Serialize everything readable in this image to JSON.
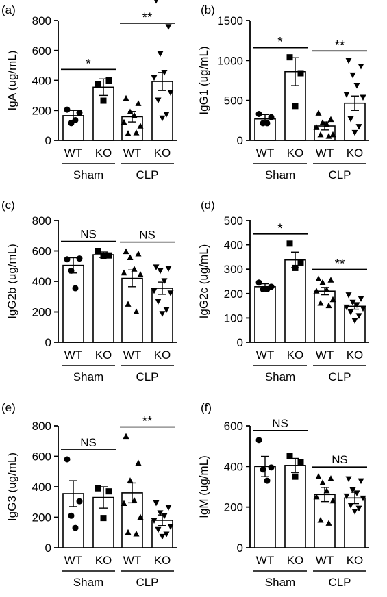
{
  "panel_letters": [
    "(a)",
    "(b)",
    "(c)",
    "(d)",
    "(e)",
    "(f)"
  ],
  "chart_data": [
    {
      "panel": "(a)",
      "type": "bar",
      "ylabel": "IgA (ug/mL)",
      "ylim": [
        0,
        800
      ],
      "yticks": [
        0,
        200,
        400,
        600,
        800
      ],
      "categories": [
        "WT",
        "KO",
        "WT",
        "KO"
      ],
      "groups": [
        "Sham",
        "CLP"
      ],
      "values": [
        165,
        355,
        158,
        393
      ],
      "errors": [
        35,
        55,
        35,
        60
      ],
      "points": [
        [
          205,
          185,
          115,
          135
        ],
        [
          375,
          400,
          265
        ],
        [
          280,
          245,
          190,
          165,
          120,
          95,
          45,
          50
        ],
        [
          935,
          760,
          580,
          455,
          420,
          320,
          270,
          175,
          150
        ]
      ],
      "markers": [
        "circle",
        "square",
        "triangle",
        "triangle-down"
      ],
      "comparisons": [
        {
          "pair": [
            0,
            1
          ],
          "label": "*"
        },
        {
          "pair": [
            2,
            3
          ],
          "label": "**"
        }
      ]
    },
    {
      "panel": "(b)",
      "type": "bar",
      "ylabel": "IgG1 (ug/mL)",
      "ylim": [
        0,
        1500
      ],
      "yticks": [
        0,
        500,
        1000,
        1500
      ],
      "categories": [
        "WT",
        "KO",
        "WT",
        "KO"
      ],
      "groups": [
        "Sham",
        "CLP"
      ],
      "values": [
        268,
        860,
        180,
        465
      ],
      "errors": [
        55,
        175,
        50,
        90
      ],
      "points": [
        [
          330,
          290,
          215,
          215
        ],
        [
          1040,
          840,
          430
        ],
        [
          340,
          260,
          220,
          200,
          160,
          70,
          70,
          50
        ],
        [
          1000,
          930,
          820,
          690,
          575,
          540,
          270,
          175,
          100
        ]
      ],
      "markers": [
        "circle",
        "square",
        "triangle",
        "triangle-down"
      ],
      "comparisons": [
        {
          "pair": [
            0,
            1
          ],
          "label": "*"
        },
        {
          "pair": [
            2,
            3
          ],
          "label": "**"
        }
      ]
    },
    {
      "panel": "(c)",
      "type": "bar",
      "ylabel": "IgG2b (ug/mL)",
      "ylim": [
        0,
        800
      ],
      "yticks": [
        0,
        200,
        400,
        600,
        800
      ],
      "categories": [
        "WT",
        "KO",
        "WT",
        "KO"
      ],
      "groups": [
        "Sham",
        "CLP"
      ],
      "values": [
        505,
        575,
        420,
        355
      ],
      "errors": [
        50,
        18,
        55,
        40
      ],
      "points": [
        [
          545,
          550,
          470,
          355
        ],
        [
          600,
          570,
          565
        ],
        [
          595,
          580,
          555,
          480,
          455,
          445,
          250,
          200
        ],
        [
          495,
          485,
          470,
          405,
          340,
          325,
          270,
          215,
          190
        ]
      ],
      "markers": [
        "circle",
        "square",
        "triangle",
        "triangle-down"
      ],
      "comparisons": [
        {
          "pair": [
            0,
            1
          ],
          "label": "NS"
        },
        {
          "pair": [
            2,
            3
          ],
          "label": "NS"
        }
      ]
    },
    {
      "panel": "(d)",
      "type": "bar",
      "ylabel": "IgG2c (ug/mL)",
      "ylim": [
        0,
        500
      ],
      "yticks": [
        0,
        100,
        200,
        300,
        400,
        500
      ],
      "categories": [
        "WT",
        "KO",
        "WT",
        "KO"
      ],
      "groups": [
        "Sham",
        "CLP"
      ],
      "values": [
        228,
        338,
        210,
        148
      ],
      "errors": [
        12,
        32,
        15,
        12
      ],
      "points": [
        [
          245,
          228,
          218,
          218
        ],
        [
          405,
          325,
          305
        ],
        [
          260,
          255,
          245,
          215,
          210,
          175,
          160,
          150
        ],
        [
          195,
          180,
          165,
          155,
          145,
          140,
          125,
          110,
          90
        ]
      ],
      "markers": [
        "circle",
        "square",
        "triangle",
        "triangle-down"
      ],
      "comparisons": [
        {
          "pair": [
            0,
            1
          ],
          "label": "*"
        },
        {
          "pair": [
            2,
            3
          ],
          "label": "**"
        }
      ]
    },
    {
      "panel": "(e)",
      "type": "bar",
      "ylabel": "IgG3 (ug/mL)",
      "ylim": [
        0,
        800
      ],
      "yticks": [
        0,
        200,
        400,
        600,
        800
      ],
      "categories": [
        "WT",
        "KO",
        "WT",
        "KO"
      ],
      "groups": [
        "Sham",
        "CLP"
      ],
      "values": [
        355,
        330,
        360,
        180
      ],
      "errors": [
        85,
        70,
        65,
        35
      ],
      "points": [
        [
          580,
          305,
          210,
          130
        ],
        [
          390,
          370,
          195
        ],
        [
          730,
          555,
          440,
          310,
          290,
          200,
          100,
          90
        ],
        [
          295,
          265,
          230,
          210,
          180,
          140,
          120,
          90,
          75
        ]
      ],
      "markers": [
        "circle",
        "square",
        "triangle",
        "triangle-down"
      ],
      "comparisons": [
        {
          "pair": [
            2,
            3
          ],
          "label": "**"
        },
        {
          "pair": [
            0,
            1
          ],
          "label": "NS"
        }
      ]
    },
    {
      "panel": "(f)",
      "type": "bar",
      "ylabel": "IgM (ug/mL)",
      "ylim": [
        0,
        600
      ],
      "yticks": [
        0,
        200,
        400,
        600
      ],
      "categories": [
        "WT",
        "KO",
        "WT",
        "KO"
      ],
      "groups": [
        "Sham",
        "CLP"
      ],
      "values": [
        400,
        405,
        262,
        245
      ],
      "errors": [
        50,
        35,
        35,
        28
      ],
      "points": [
        [
          530,
          395,
          385,
          330
        ],
        [
          450,
          420,
          350
        ],
        [
          350,
          340,
          320,
          280,
          250,
          230,
          135,
          120
        ],
        [
          340,
          330,
          285,
          270,
          255,
          245,
          210,
          195,
          180
        ]
      ],
      "markers": [
        "circle",
        "square",
        "triangle",
        "triangle-down"
      ],
      "comparisons": [
        {
          "pair": [
            0,
            1
          ],
          "label": "NS"
        },
        {
          "pair": [
            2,
            3
          ],
          "label": "NS"
        }
      ]
    }
  ]
}
